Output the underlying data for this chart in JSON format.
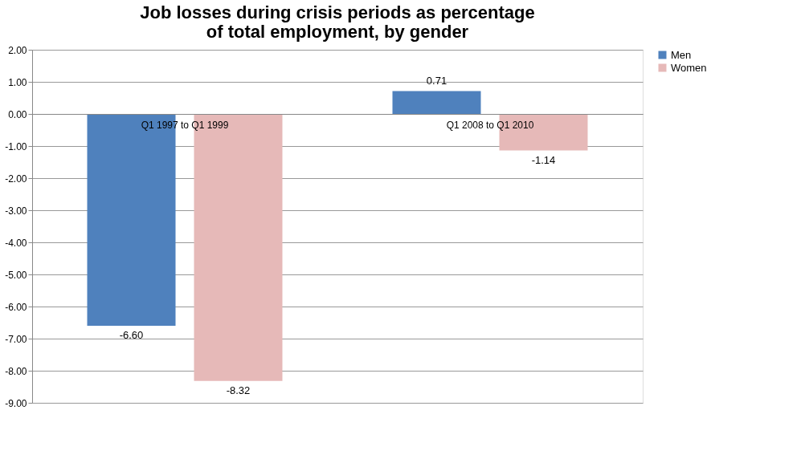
{
  "chart_data": {
    "type": "bar",
    "title": "Job losses during crisis periods as percentage of total employment, by gender",
    "categories": [
      "Q1 1997 to Q1 1999",
      "Q1 2008 to Q1 2010"
    ],
    "series": [
      {
        "name": "Men",
        "color": "#4f81bd",
        "values": [
          -6.6,
          0.71
        ],
        "value_labels": [
          "-6.60",
          "0.71"
        ]
      },
      {
        "name": "Women",
        "color": "#e6b9b8",
        "values": [
          -8.32,
          -1.14
        ],
        "value_labels": [
          "-8.32",
          "-1.14"
        ]
      }
    ],
    "ylim": [
      -9,
      2
    ],
    "yticks": [
      {
        "value": 2,
        "label": "2.00"
      },
      {
        "value": 1,
        "label": "1.00"
      },
      {
        "value": 0,
        "label": "0.00"
      },
      {
        "value": -1,
        "label": "-1.00"
      },
      {
        "value": -2,
        "label": "-2.00"
      },
      {
        "value": -3,
        "label": "-3.00"
      },
      {
        "value": -4,
        "label": "-4.00"
      },
      {
        "value": -5,
        "label": "-5.00"
      },
      {
        "value": -6,
        "label": "-6.00"
      },
      {
        "value": -7,
        "label": "-7.00"
      },
      {
        "value": -8,
        "label": "-8.00"
      },
      {
        "value": -9,
        "label": "-9.00"
      }
    ],
    "grid": "y",
    "legend": "right"
  }
}
